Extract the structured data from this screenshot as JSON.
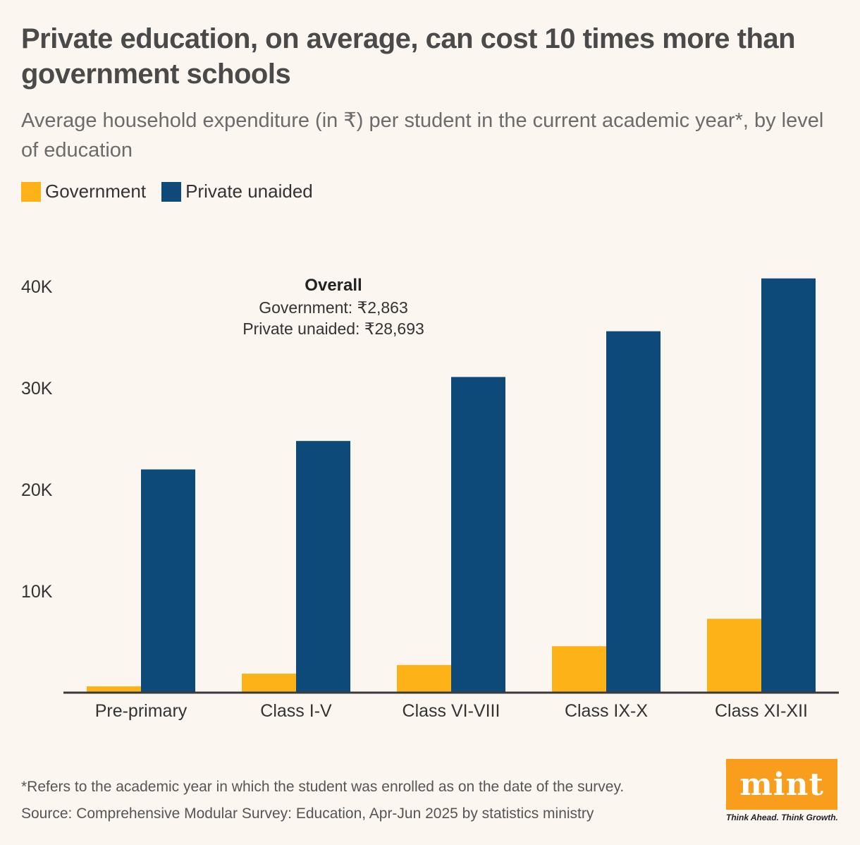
{
  "header": {
    "title": "Private education, on average, can cost 10 times more than government schools",
    "subtitle": "Average household expenditure (in ₹) per student in the current academic year*, by level of education"
  },
  "legend": {
    "government_label": "Government",
    "private_label": "Private unaided"
  },
  "annotation": {
    "heading": "Overall",
    "government": "Government: ₹2,863",
    "private": "Private unaided: ₹28,693"
  },
  "footer": {
    "footnote": "*Refers to the academic year in which the student was enrolled as on the date of the survey.",
    "source": "Source: Comprehensive Modular Survey: Education, Apr-Jun 2025 by statistics ministry"
  },
  "brand": {
    "logo_text": "mint",
    "tagline": "Think Ahead. Think Growth."
  },
  "colors": {
    "government": "#fdb218",
    "private": "#0d4a7a",
    "axis": "#3a3a3a",
    "logo_bg": "#f99d1c"
  },
  "chart_data": {
    "type": "bar",
    "title": "Private education, on average, can cost 10 times more than government schools",
    "ylabel": "Average household expenditure (in ₹)",
    "xlabel": "",
    "categories": [
      "Pre-primary",
      "Class I-V",
      "Class VI-VIII",
      "Class IX-X",
      "Class XI-XII"
    ],
    "series": [
      {
        "name": "Government",
        "values": [
          550,
          1800,
          2650,
          4500,
          7200
        ]
      },
      {
        "name": "Private unaided",
        "values": [
          21900,
          24700,
          31000,
          35500,
          40700
        ]
      }
    ],
    "ylim": [
      0,
      42000
    ],
    "yticks": [
      10000,
      20000,
      30000,
      40000
    ],
    "ytick_labels": [
      "10K",
      "20K",
      "30K",
      "40K"
    ],
    "grid": false,
    "legend_position": "top-left"
  }
}
